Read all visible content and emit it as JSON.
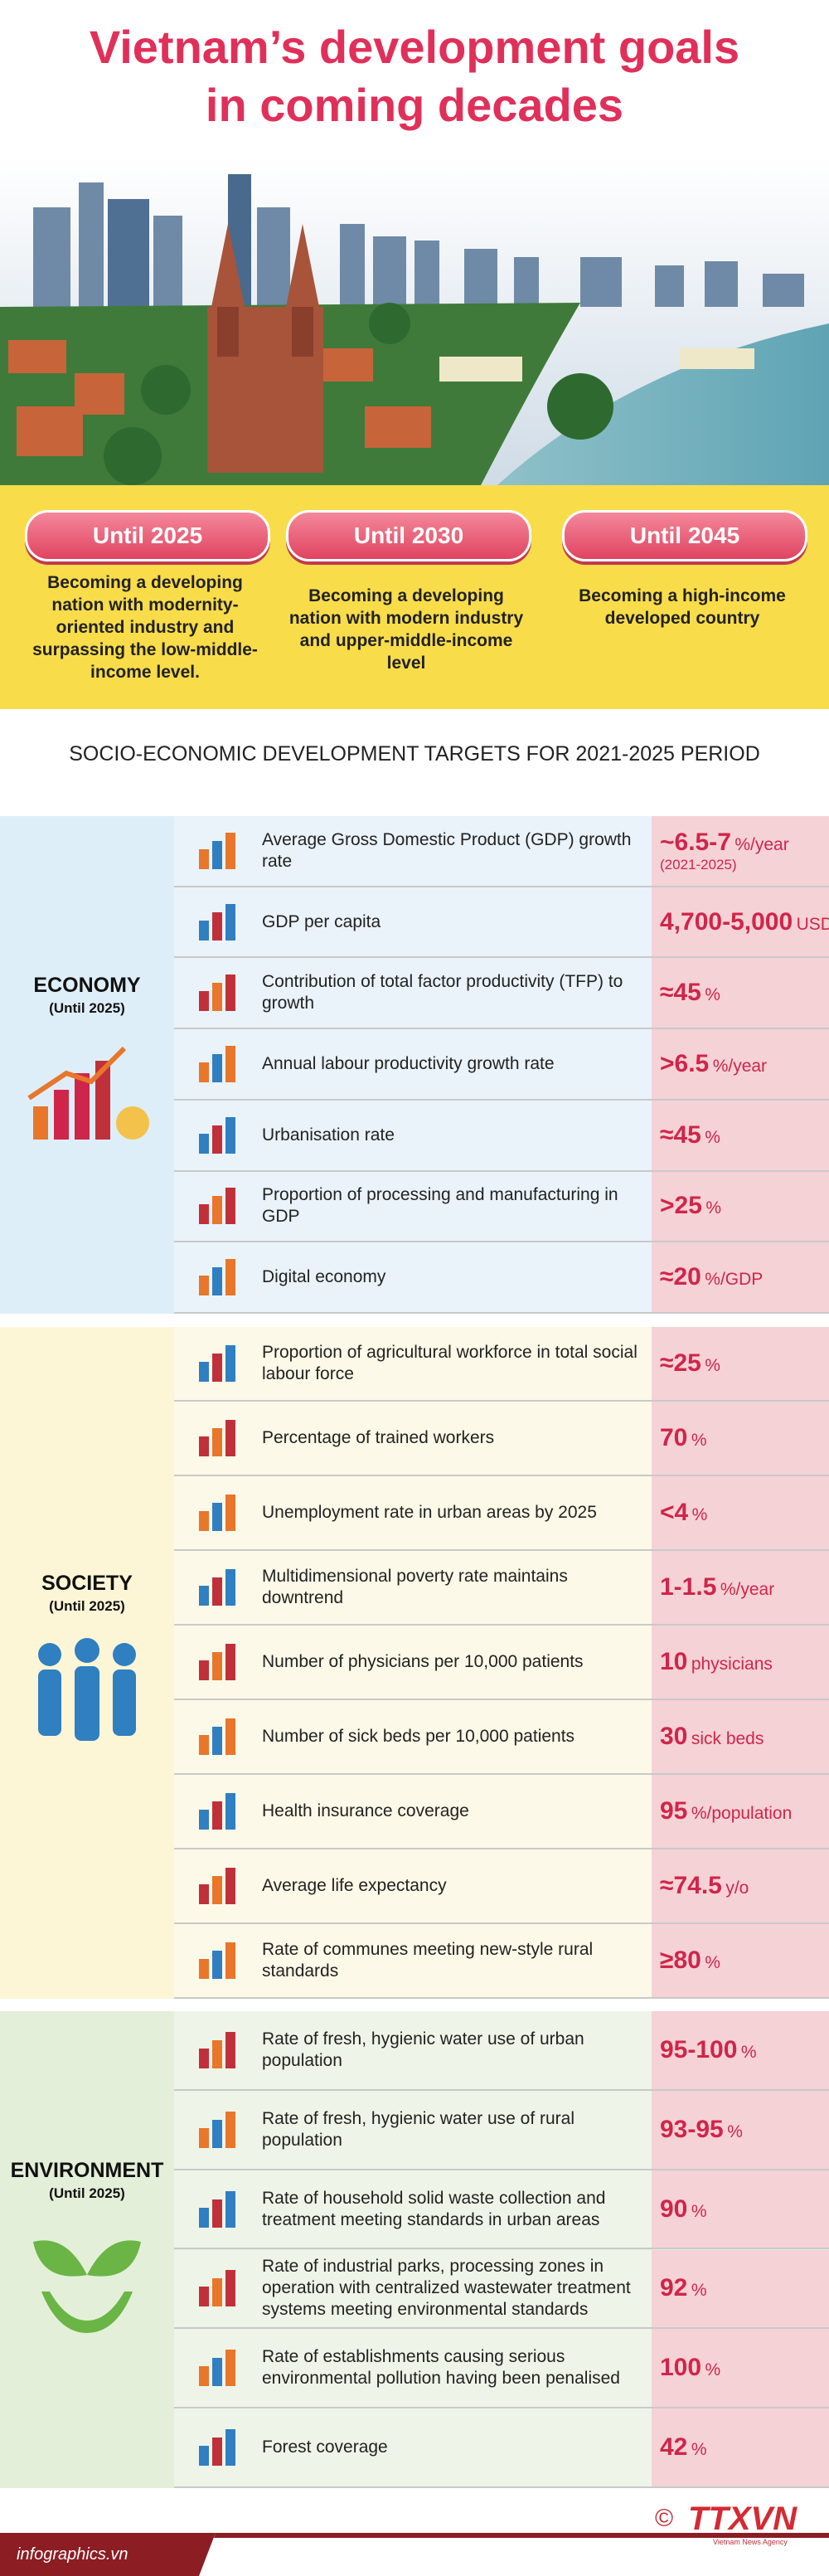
{
  "header": {
    "title_lines": [
      "Vietnam’s development goals",
      "in coming decades"
    ]
  },
  "goals": [
    {
      "label": "Until 2025",
      "description": "Becoming a developing nation with modernity-oriented industry and surpassing the low-middle-income level."
    },
    {
      "label": "Until 2030",
      "description": "Becoming a developing nation with modern industry and upper-middle-income level"
    },
    {
      "label": "Until 2045",
      "description": "Becoming a high-income developed country"
    }
  ],
  "heading": "SOCIO-ECONOMIC DEVELOPMENT TARGETS FOR 2021-2025 PERIOD",
  "sections": [
    {
      "name": "ECONOMY",
      "subtitle": "(Until 2025)",
      "rows": [
        {
          "label": "Average Gross Domestic Product (GDP) growth rate",
          "value": "~6.5-7",
          "unit": "%/year",
          "note": "(2021-2025)"
        },
        {
          "label": "GDP per capita",
          "value": "4,700-5,000",
          "unit": "USD"
        },
        {
          "label": "Contribution of total factor productivity (TFP) to growth",
          "value": "≈45",
          "unit": "%"
        },
        {
          "label": "Annual labour productivity growth rate",
          "value": ">6.5",
          "unit": "%/year"
        },
        {
          "label": "Urbanisation rate",
          "value": "≈45",
          "unit": "%"
        },
        {
          "label": "Proportion of processing and manufacturing in GDP",
          "value": ">25",
          "unit": "%"
        },
        {
          "label": "Digital economy",
          "value": "≈20",
          "unit": "%/GDP"
        }
      ]
    },
    {
      "name": "SOCIETY",
      "subtitle": "(Until 2025)",
      "rows": [
        {
          "label": "Proportion of agricultural workforce in total social labour force",
          "value": "≈25",
          "unit": "%"
        },
        {
          "label": "Percentage of trained workers",
          "value": "70",
          "unit": "%"
        },
        {
          "label": "Unemployment rate in urban areas by 2025",
          "value": "<4",
          "unit": "%"
        },
        {
          "label": "Multidimensional poverty rate maintains downtrend",
          "value": "1-1.5",
          "unit": "%/year"
        },
        {
          "label": "Number of physicians per 10,000 patients",
          "value": "10",
          "unit": "physicians"
        },
        {
          "label": "Number of sick beds per 10,000 patients",
          "value": "30",
          "unit": "sick beds"
        },
        {
          "label": "Health insurance coverage",
          "value": "95",
          "unit": "%/population"
        },
        {
          "label": "Average life expectancy",
          "value": "≈74.5",
          "unit": "y/o"
        },
        {
          "label": "Rate of communes meeting new-style rural standards",
          "value": "≥80",
          "unit": "%"
        }
      ]
    },
    {
      "name": "ENVIRONMENT",
      "subtitle": "(Until 2025)",
      "rows": [
        {
          "label": "Rate of fresh, hygienic water use of urban population",
          "value": "95-100",
          "unit": "%"
        },
        {
          "label": "Rate of fresh, hygienic water use of rural population",
          "value": "93-95",
          "unit": "%"
        },
        {
          "label": "Rate of household solid waste collection and treatment meeting standards in urban areas",
          "value": "90",
          "unit": "%"
        },
        {
          "label": "Rate of industrial parks, processing zones in operation with centralized wastewater treatment systems meeting environmental standards",
          "value": "92",
          "unit": "%"
        },
        {
          "label": "Rate of establishments causing serious environmental pollution having been penalised",
          "value": "100",
          "unit": "%"
        },
        {
          "label": "Forest coverage",
          "value": "42",
          "unit": "%"
        }
      ]
    }
  ],
  "footer": {
    "site": "infographics.vn",
    "copyright": "©",
    "agency": "TTXVN",
    "agency_full": "Vietnam News Agency"
  }
}
